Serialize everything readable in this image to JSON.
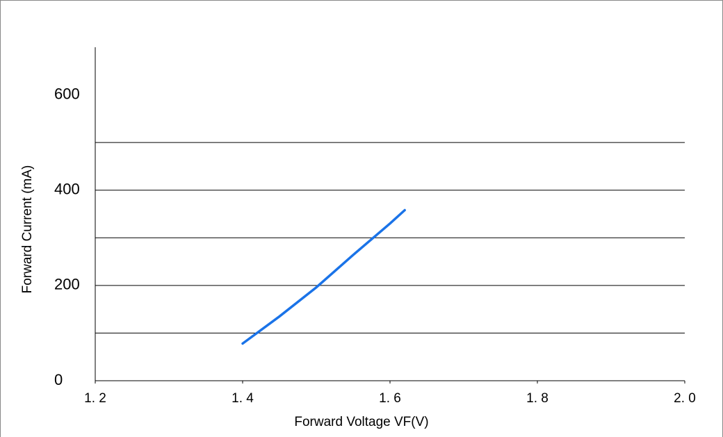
{
  "chart_data": {
    "type": "line",
    "x_label": "Forward Voltage  VF(V)",
    "y_label": "Forward Current (mA)",
    "xlim": [
      1.2,
      2.0
    ],
    "xticks": [
      {
        "value": 1.2,
        "label": "1. 2"
      },
      {
        "value": 1.4,
        "label": "1. 4"
      },
      {
        "value": 1.6,
        "label": "1. 6"
      },
      {
        "value": 1.8,
        "label": "1. 8"
      },
      {
        "value": 2.0,
        "label": "2. 0"
      }
    ],
    "ylim": [
      0,
      700
    ],
    "yticks": [
      0,
      200,
      400,
      600
    ],
    "ygrid": [
      100,
      200,
      300,
      400,
      500
    ],
    "x": [
      1.4,
      1.45,
      1.5,
      1.55,
      1.6,
      1.62
    ],
    "series": [
      {
        "color": "#1a73e8",
        "values": [
          78,
          135,
          196,
          264,
          330,
          358
        ]
      }
    ]
  }
}
